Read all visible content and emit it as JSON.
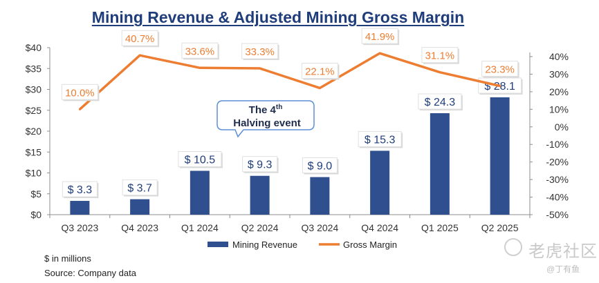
{
  "chart_data": {
    "type": "bar",
    "title": "Mining Revenue & Adjusted Mining Gross Margin",
    "categories": [
      "Q3 2023",
      "Q4 2023",
      "Q1 2024",
      "Q2 2024",
      "Q3 2024",
      "Q4 2024",
      "Q1 2025",
      "Q2 2025"
    ],
    "series": [
      {
        "name": "Mining Revenue",
        "type": "bar",
        "axis": "left",
        "color": "#2f4f8f",
        "values": [
          3.3,
          3.7,
          10.5,
          9.3,
          9.0,
          15.3,
          24.3,
          28.1
        ],
        "labels": [
          "$ 3.3",
          "$ 3.7",
          "$ 10.5",
          "$ 9.3",
          "$ 9.0",
          "$ 15.3",
          "$ 24.3",
          "$ 28.1"
        ]
      },
      {
        "name": "Gross Margin",
        "type": "line",
        "axis": "right",
        "color": "#ed7d31",
        "values": [
          10.0,
          40.7,
          33.6,
          33.3,
          22.1,
          41.9,
          31.1,
          23.3
        ],
        "labels": [
          "10.0%",
          "40.7%",
          "33.6%",
          "33.3%",
          "22.1%",
          "41.9%",
          "31.1%",
          "23.3%"
        ]
      }
    ],
    "y_left": {
      "min": 0,
      "max": 40,
      "ticks": [
        0,
        5,
        10,
        15,
        20,
        25,
        30,
        35,
        40
      ],
      "tick_labels": [
        "$0",
        "$5",
        "$10",
        "$15",
        "$20",
        "$25",
        "$30",
        "$35",
        "$40"
      ]
    },
    "y_right": {
      "min": -50,
      "max": 45,
      "ticks": [
        -50,
        -40,
        -30,
        -20,
        -10,
        0,
        10,
        20,
        30,
        40
      ],
      "tick_labels": [
        "-50%",
        "-40%",
        "-30%",
        "-20%",
        "-10%",
        "0%",
        "10%",
        "20%",
        "30%",
        "40%"
      ]
    },
    "grid": false,
    "legend": {
      "position": "bottom",
      "entries": [
        "Mining Revenue",
        "Gross Margin"
      ]
    },
    "annotation": {
      "line1": "The 4",
      "superscript": "th",
      "line2": "Halving event",
      "between": [
        "Q3 2024",
        "Q4 2024"
      ]
    },
    "notes": [
      "$ in millions",
      "Source: Company data"
    ]
  },
  "watermark": {
    "logo_text": "老虎社区",
    "author": "@丁有鱼"
  },
  "colors": {
    "title": "#1f3d7a",
    "bar": "#2f4f8f",
    "line": "#ed7d31",
    "label_text": "#1f3d7a"
  }
}
